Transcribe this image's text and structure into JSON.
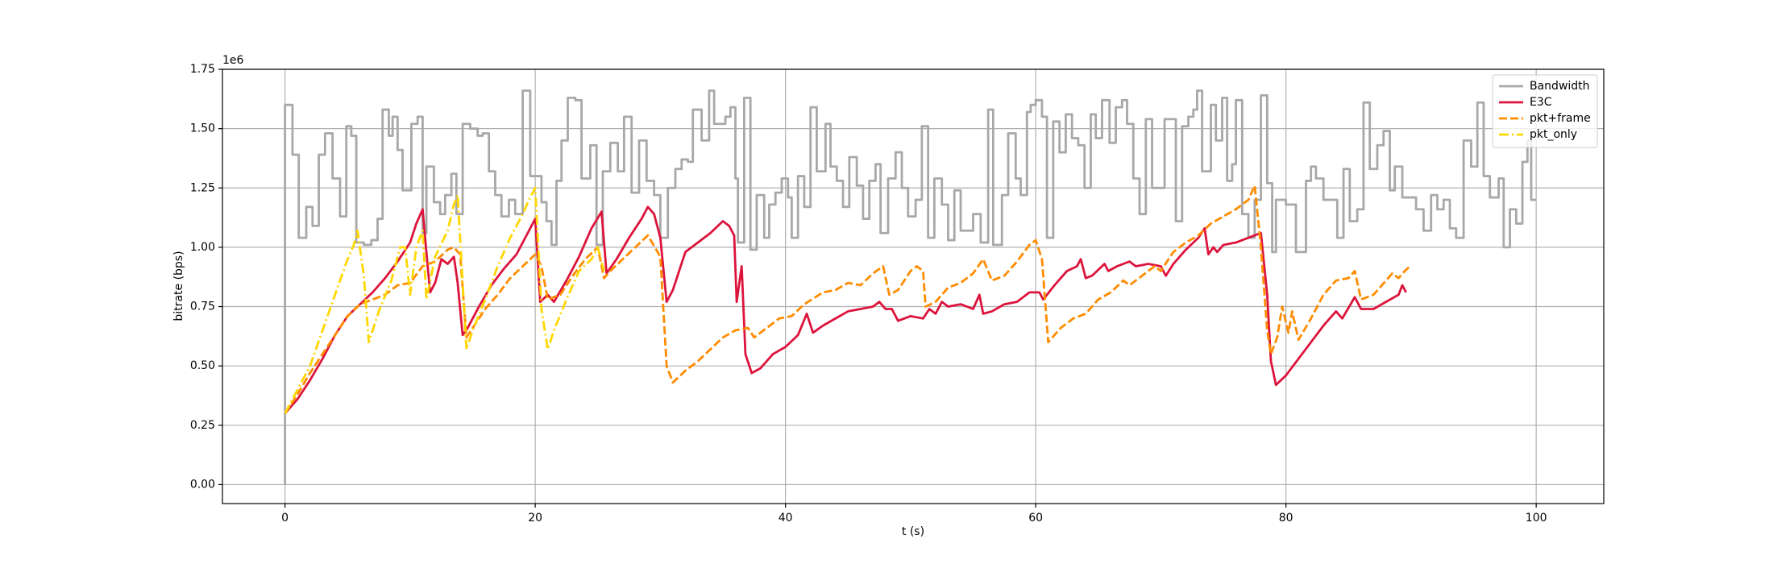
{
  "chart_data": {
    "type": "line",
    "xlabel": "t (s)",
    "ylabel": "bitrate (bps)",
    "y_offset_label": "1e6",
    "xlim": [
      -5,
      105.4
    ],
    "ylim": [
      -80000,
      1750000
    ],
    "xticks": [
      0,
      20,
      40,
      60,
      80,
      100
    ],
    "yticks": [
      {
        "value": 0,
        "label": "0.00"
      },
      {
        "value": 250000,
        "label": "0.25"
      },
      {
        "value": 500000,
        "label": "0.50"
      },
      {
        "value": 750000,
        "label": "0.75"
      },
      {
        "value": 1000000,
        "label": "1.00"
      },
      {
        "value": 1250000,
        "label": "1.25"
      },
      {
        "value": 1500000,
        "label": "1.50"
      },
      {
        "value": 1750000,
        "label": "1.75"
      }
    ],
    "grid": true,
    "legend": "upper right",
    "series": [
      {
        "name": "Bandwidth",
        "color": "#a8a8a8",
        "linestyle": "solid",
        "drawstyle": "steps-post",
        "x": [
          0,
          0,
          0.6,
          1.1,
          1.7,
          2.2,
          2.7,
          3.2,
          3.8,
          4.4,
          4.9,
          5.3,
          5.7,
          6.3,
          6.9,
          7.4,
          7.8,
          8.3,
          8.6,
          9.0,
          9.4,
          10.1,
          10.6,
          11.0,
          11.3,
          11.9,
          12.4,
          12.8,
          13.3,
          13.7,
          14.2,
          14.8,
          15.4,
          15.8,
          16.3,
          16.8,
          17.3,
          17.9,
          18.4,
          19.0,
          19.6,
          20.5,
          20.9,
          21.3,
          21.7,
          22.1,
          22.6,
          23.2,
          23.7,
          24.4,
          24.9,
          25.4,
          26.0,
          26.6,
          27.1,
          27.7,
          28.3,
          28.9,
          29.5,
          30.0,
          30.6,
          31.2,
          31.7,
          32.2,
          32.6,
          33.3,
          33.9,
          34.3,
          35.2,
          35.6,
          36.0,
          36.2,
          36.7,
          37.2,
          37.7,
          38.3,
          38.7,
          39.2,
          39.7,
          40.2,
          40.5,
          41.0,
          41.5,
          42.0,
          42.5,
          43.2,
          43.6,
          44.1,
          44.6,
          45.1,
          45.7,
          46.2,
          46.7,
          47.2,
          47.6,
          48.2,
          48.8,
          49.3,
          49.8,
          50.4,
          50.9,
          51.4,
          51.9,
          52.5,
          53.0,
          53.5,
          54.0,
          55.0,
          55.6,
          56.2,
          56.6,
          57.3,
          57.8,
          58.4,
          58.8,
          59.3,
          59.6,
          60.0,
          60.5,
          60.9,
          61.4,
          61.9,
          62.4,
          62.9,
          63.4,
          63.9,
          64.4,
          64.8,
          65.3,
          65.9,
          66.4,
          66.9,
          67.3,
          67.8,
          68.3,
          68.8,
          69.3,
          70.3,
          71.2,
          71.7,
          72.2,
          72.6,
          72.9,
          73.3,
          74.0,
          74.4,
          74.9,
          75.3,
          75.7,
          76.0,
          76.5,
          77.0,
          77.5,
          78.0,
          78.5,
          78.9,
          79.2,
          80.0,
          80.8,
          81.6,
          82.0,
          82.4,
          83.0,
          84.1,
          84.6,
          85.1,
          85.7,
          86.2,
          86.7,
          87.3,
          87.8,
          88.3,
          88.7,
          89.3,
          90.4,
          91.0,
          91.6,
          92.1,
          92.6,
          93.1,
          93.6,
          94.2,
          94.8,
          95.3,
          95.8,
          96.3,
          97.0,
          97.4,
          97.9,
          98.4,
          98.9,
          99.3,
          99.6,
          100
        ],
        "values": [
          0,
          1600000.0,
          1390000.0,
          1040000.0,
          1170000.0,
          1090000.0,
          1390000.0,
          1480000.0,
          1290000.0,
          1130000.0,
          1510000.0,
          1470000.0,
          1020000.0,
          1010000.0,
          1030000.0,
          1120000.0,
          1580000.0,
          1470000.0,
          1550000.0,
          1410000.0,
          1240000.0,
          1520000.0,
          1550000.0,
          1060000.0,
          1340000.0,
          1190000.0,
          1140000.0,
          1220000.0,
          1310000.0,
          1140000.0,
          1520000.0,
          1500000.0,
          1470000.0,
          1480000.0,
          1320000.0,
          1220000.0,
          1130000.0,
          1200000.0,
          1140000.0,
          1660000.0,
          1300000.0,
          1190000.0,
          1110000.0,
          1010000.0,
          1280000.0,
          1450000.0,
          1630000.0,
          1620000.0,
          1290000.0,
          1430000.0,
          1010000.0,
          1320000.0,
          1440000.0,
          1320000.0,
          1550000.0,
          1230000.0,
          1450000.0,
          1280000.0,
          1220000.0,
          1040000.0,
          1250000.0,
          1330000.0,
          1370000.0,
          1360000.0,
          1580000.0,
          1450000.0,
          1660000.0,
          1520000.0,
          1550000.0,
          1590000.0,
          1290000.0,
          1020000.0,
          1630000.0,
          990000.0,
          1220000.0,
          1040000.0,
          1180000.0,
          1230000.0,
          1290000.0,
          1210000.0,
          1040000.0,
          1300000.0,
          1170000.0,
          1590000.0,
          1320000.0,
          1520000.0,
          1340000.0,
          1280000.0,
          1170000.0,
          1380000.0,
          1260000.0,
          1120000.0,
          1280000.0,
          1350000.0,
          1060000.0,
          1290000.0,
          1400000.0,
          1250000.0,
          1130000.0,
          1200000.0,
          1510000.0,
          1040000.0,
          1290000.0,
          1180000.0,
          1030000.0,
          1240000.0,
          1070000.0,
          1140000.0,
          1020000.0,
          1580000.0,
          1010000.0,
          1220000.0,
          1480000.0,
          1290000.0,
          1220000.0,
          1570000.0,
          1600000.0,
          1620000.0,
          1550000.0,
          1040000.0,
          1530000.0,
          1400000.0,
          1560000.0,
          1460000.0,
          1430000.0,
          1250000.0,
          1560000.0,
          1460000.0,
          1620000.0,
          1440000.0,
          1590000.0,
          1620000.0,
          1520000.0,
          1290000.0,
          1140000.0,
          1540000.0,
          1250000.0,
          1540000.0,
          1110000.0,
          1510000.0,
          1550000.0,
          1580000.0,
          1660000.0,
          1320000.0,
          1600000.0,
          1450000.0,
          1630000.0,
          1280000.0,
          1350000.0,
          1620000.0,
          1140000.0,
          1040000.0,
          1200000.0,
          1640000.0,
          1270000.0,
          980000.0,
          1200000.0,
          1180000.0,
          980000.0,
          1280000.0,
          1340000.0,
          1290000.0,
          1200000.0,
          1040000.0,
          1330000.0,
          1110000.0,
          1160000.0,
          1610000.0,
          1330000.0,
          1430000.0,
          1490000.0,
          1240000.0,
          1340000.0,
          1210000.0,
          1160000.0,
          1070000.0,
          1220000.0,
          1160000.0,
          1200000.0,
          1080000.0,
          1040000.0,
          1450000.0,
          1340000.0,
          1610000.0,
          1300000.0,
          1210000.0,
          1290000.0,
          1000000.0,
          1160000.0,
          1100000.0,
          1360000.0,
          1450000.0,
          1200000.0,
          1200000.0
        ]
      },
      {
        "name": "E3C",
        "color": "#dc143c",
        "linestyle": "solid",
        "x": [
          0,
          0.5,
          1,
          2,
          3,
          4,
          5,
          6,
          7,
          8,
          9,
          10,
          10.5,
          11,
          11.3,
          11.6,
          12,
          12.5,
          13,
          13.5,
          13.8,
          14.2,
          14.6,
          15.5,
          16.5,
          17.5,
          18.5,
          19.5,
          20,
          20.4,
          21,
          21.5,
          22.5,
          23.5,
          24.5,
          25.3,
          25.7,
          26.5,
          27.5,
          28.5,
          29,
          29.5,
          30,
          30.5,
          31,
          32,
          33,
          34,
          35,
          35.5,
          35.9,
          36.1,
          36.5,
          36.8,
          37.3,
          38,
          39,
          40,
          41,
          41.7,
          42.2,
          43,
          44,
          45,
          46,
          47,
          47.5,
          48,
          48.5,
          49,
          50,
          51,
          51.5,
          52,
          52.5,
          53,
          54,
          55,
          55.5,
          55.8,
          56.5,
          57.5,
          58.5,
          59.5,
          60.3,
          60.6,
          61.5,
          62.5,
          63.3,
          63.6,
          64,
          64.5,
          65.5,
          65.8,
          66.5,
          67.5,
          68,
          69,
          70,
          70.4,
          71,
          72,
          73,
          73.5,
          73.8,
          74.2,
          74.5,
          75,
          76,
          77,
          78,
          78.5,
          78.8,
          79.2,
          80,
          81,
          82,
          83,
          84,
          84.5,
          85.5,
          86,
          87,
          88,
          89,
          89.3,
          89.6
        ],
        "values": [
          300000.0,
          330000.0,
          360000.0,
          440000.0,
          530000.0,
          630000.0,
          710000.0,
          760000.0,
          810000.0,
          870000.0,
          940000.0,
          1020000.0,
          1100000.0,
          1160000.0,
          980000.0,
          810000.0,
          850000.0,
          950000.0,
          930000.0,
          960000.0,
          850000.0,
          630000.0,
          660000.0,
          750000.0,
          840000.0,
          910000.0,
          970000.0,
          1070000.0,
          1120000.0,
          770000.0,
          800000.0,
          770000.0,
          860000.0,
          960000.0,
          1080000.0,
          1150000.0,
          890000.0,
          950000.0,
          1040000.0,
          1120000.0,
          1170000.0,
          1140000.0,
          1040000.0,
          770000.0,
          820000.0,
          980000.0,
          1020000.0,
          1060000.0,
          1110000.0,
          1090000.0,
          1050000.0,
          770000.0,
          920000.0,
          550000.0,
          470000.0,
          490000.0,
          550000.0,
          580000.0,
          630000.0,
          720000.0,
          640000.0,
          670000.0,
          700000.0,
          730000.0,
          740000.0,
          750000.0,
          770000.0,
          740000.0,
          740000.0,
          690000.0,
          710000.0,
          700000.0,
          740000.0,
          720000.0,
          770000.0,
          750000.0,
          760000.0,
          740000.0,
          800000.0,
          720000.0,
          730000.0,
          760000.0,
          770000.0,
          810000.0,
          810000.0,
          780000.0,
          840000.0,
          900000.0,
          920000.0,
          950000.0,
          870000.0,
          880000.0,
          930000.0,
          900000.0,
          920000.0,
          940000.0,
          920000.0,
          930000.0,
          920000.0,
          880000.0,
          930000.0,
          990000.0,
          1040000.0,
          1080000.0,
          970000.0,
          1000000.0,
          980000.0,
          1010000.0,
          1020000.0,
          1040000.0,
          1060000.0,
          800000.0,
          520000.0,
          420000.0,
          460000.0,
          530000.0,
          600000.0,
          670000.0,
          730000.0,
          700000.0,
          790000.0,
          740000.0,
          740000.0,
          770000.0,
          800000.0,
          840000.0,
          810000.0
        ]
      },
      {
        "name": "pkt+frame",
        "color": "#ff8c00",
        "linestyle": "dashed",
        "x": [
          0,
          1,
          2,
          3,
          4,
          5,
          6,
          7,
          8,
          9,
          10,
          11,
          12,
          13,
          13.5,
          14,
          14.5,
          15,
          16,
          17,
          18,
          19,
          20,
          20.5,
          21,
          22,
          23,
          24,
          25,
          25.5,
          26,
          27,
          28,
          29,
          30,
          30.5,
          31,
          32,
          33,
          34,
          35,
          36,
          37,
          37.5,
          38.5,
          39.5,
          40.5,
          41.5,
          43,
          44,
          45,
          46,
          47,
          47.8,
          48.3,
          49,
          50,
          50.5,
          51,
          51.2,
          52,
          53,
          54,
          55,
          55.8,
          56.5,
          57.5,
          58.5,
          59.5,
          60,
          60.5,
          61,
          62,
          63,
          64,
          65,
          66,
          67,
          67.5,
          68.5,
          69.5,
          70,
          71,
          72,
          73,
          74,
          75,
          76,
          77,
          77.5,
          78,
          78.5,
          78.8,
          79.3,
          79.7,
          80.2,
          80.5,
          81,
          82,
          83,
          84,
          85,
          85.5,
          86,
          87,
          88,
          88.5,
          89,
          89.5,
          89.9
        ],
        "values": [
          300000.0,
          380000.0,
          470000.0,
          550000.0,
          630000.0,
          710000.0,
          760000.0,
          780000.0,
          800000.0,
          840000.0,
          850000.0,
          920000.0,
          940000.0,
          990000.0,
          1000000.0,
          970000.0,
          620000.0,
          660000.0,
          740000.0,
          800000.0,
          870000.0,
          920000.0,
          970000.0,
          920000.0,
          780000.0,
          800000.0,
          880000.0,
          950000.0,
          1000000.0,
          870000.0,
          900000.0,
          950000.0,
          1000000.0,
          1050000.0,
          960000.0,
          500000.0,
          430000.0,
          480000.0,
          520000.0,
          570000.0,
          620000.0,
          650000.0,
          660000.0,
          620000.0,
          660000.0,
          700000.0,
          710000.0,
          760000.0,
          810000.0,
          820000.0,
          850000.0,
          840000.0,
          890000.0,
          920000.0,
          800000.0,
          820000.0,
          900000.0,
          920000.0,
          900000.0,
          750000.0,
          770000.0,
          830000.0,
          850000.0,
          890000.0,
          950000.0,
          860000.0,
          880000.0,
          940000.0,
          1010000.0,
          1030000.0,
          950000.0,
          600000.0,
          660000.0,
          700000.0,
          720000.0,
          780000.0,
          810000.0,
          860000.0,
          840000.0,
          880000.0,
          920000.0,
          900000.0,
          980000.0,
          1020000.0,
          1050000.0,
          1100000.0,
          1130000.0,
          1160000.0,
          1200000.0,
          1260000.0,
          1000000.0,
          650000.0,
          550000.0,
          620000.0,
          750000.0,
          640000.0,
          730000.0,
          610000.0,
          700000.0,
          800000.0,
          860000.0,
          870000.0,
          900000.0,
          780000.0,
          800000.0,
          860000.0,
          890000.0,
          870000.0,
          900000.0,
          920000.0
        ]
      },
      {
        "name": "pkt_only",
        "color": "#ffd700",
        "linestyle": "dashdot",
        "x": [
          0,
          1,
          2,
          3,
          4,
          5,
          5.5,
          5.8,
          6.3,
          6.7,
          7.5,
          8.5,
          9.2,
          9.6,
          10,
          10.5,
          11,
          11.3,
          12,
          13,
          13.5,
          13.8,
          14.2,
          14.5,
          15,
          16,
          17,
          18,
          19,
          19.5,
          20,
          20.5,
          21,
          21.5,
          22.5,
          23.5,
          24.5,
          25,
          25.5
        ],
        "values": [
          300000.0,
          400000.0,
          500000.0,
          650000.0,
          800000.0,
          950000.0,
          1010000.0,
          1070000.0,
          880000.0,
          600000.0,
          730000.0,
          860000.0,
          1000000.0,
          1000000.0,
          800000.0,
          1000000.0,
          1070000.0,
          780000.0,
          960000.0,
          1070000.0,
          1180000.0,
          1220000.0,
          850000.0,
          570000.0,
          650000.0,
          780000.0,
          920000.0,
          1040000.0,
          1140000.0,
          1200000.0,
          1250000.0,
          740000.0,
          570000.0,
          650000.0,
          780000.0,
          900000.0,
          950000.0,
          1000000.0,
          900000.0
        ]
      }
    ]
  }
}
